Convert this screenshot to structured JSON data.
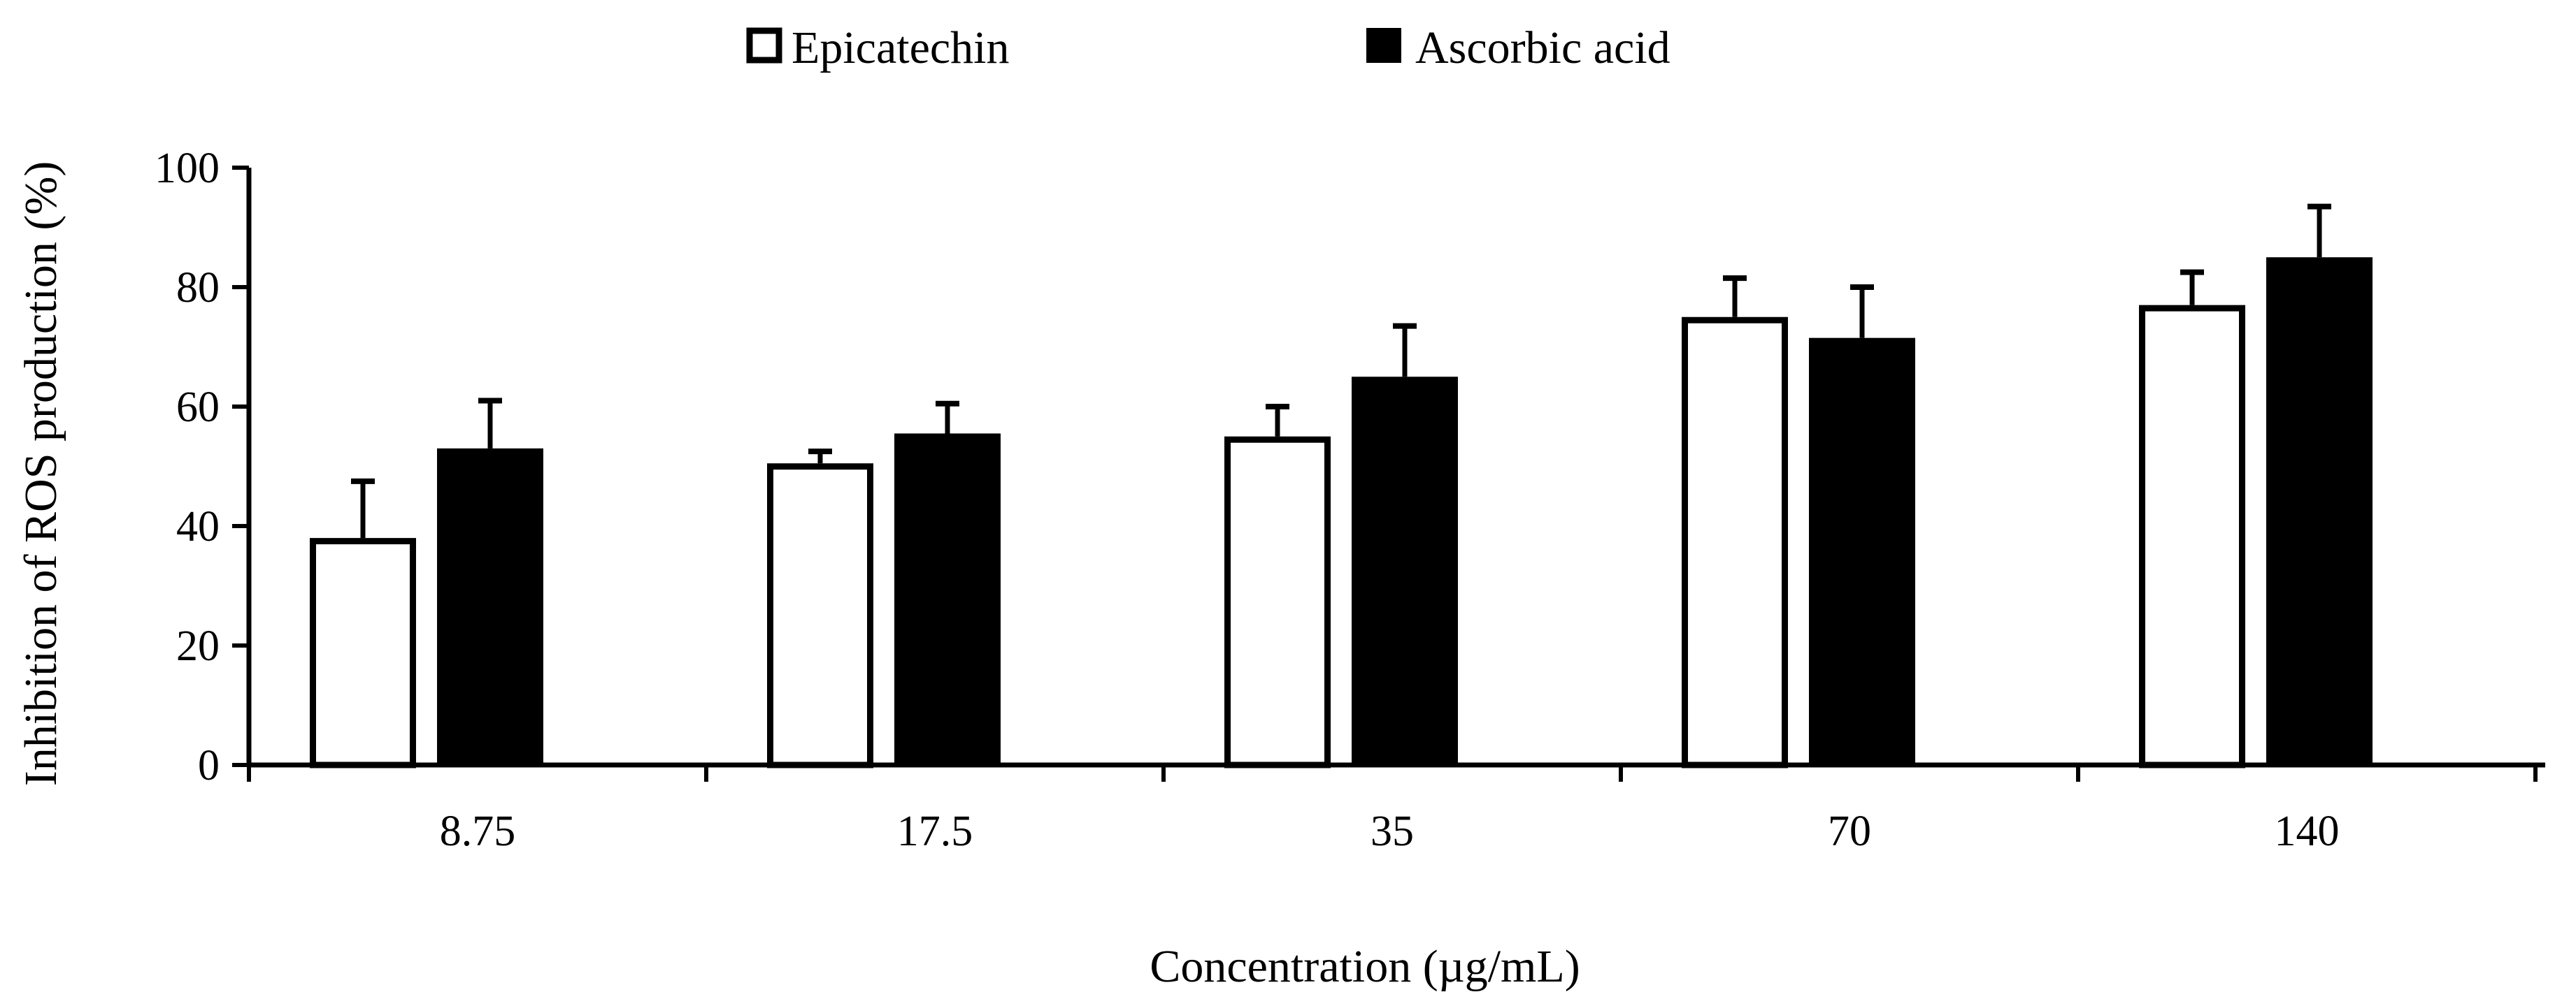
{
  "chart_data": {
    "type": "bar",
    "title": "",
    "xlabel": "Concentration (µg/mL)",
    "ylabel": "Inhibition of ROS production (%)",
    "categories": [
      "8.75",
      "17.5",
      "35",
      "70",
      "140"
    ],
    "ylim": [
      0,
      100
    ],
    "yticks": [
      "0",
      "20",
      "40",
      "60",
      "80",
      "100"
    ],
    "legend_position": "top-center",
    "grid": false,
    "series": [
      {
        "name": "Epicatechin",
        "color": "#ffffff",
        "values": [
          38,
          50.5,
          55,
          75,
          77
        ],
        "errors": [
          9.5,
          2,
          5,
          6.5,
          5.5
        ]
      },
      {
        "name": "Ascorbic acid",
        "color": "#000000",
        "values": [
          53,
          55.5,
          65,
          71.5,
          85
        ],
        "errors": [
          8,
          5,
          8.5,
          8.5,
          8.5
        ]
      }
    ]
  }
}
